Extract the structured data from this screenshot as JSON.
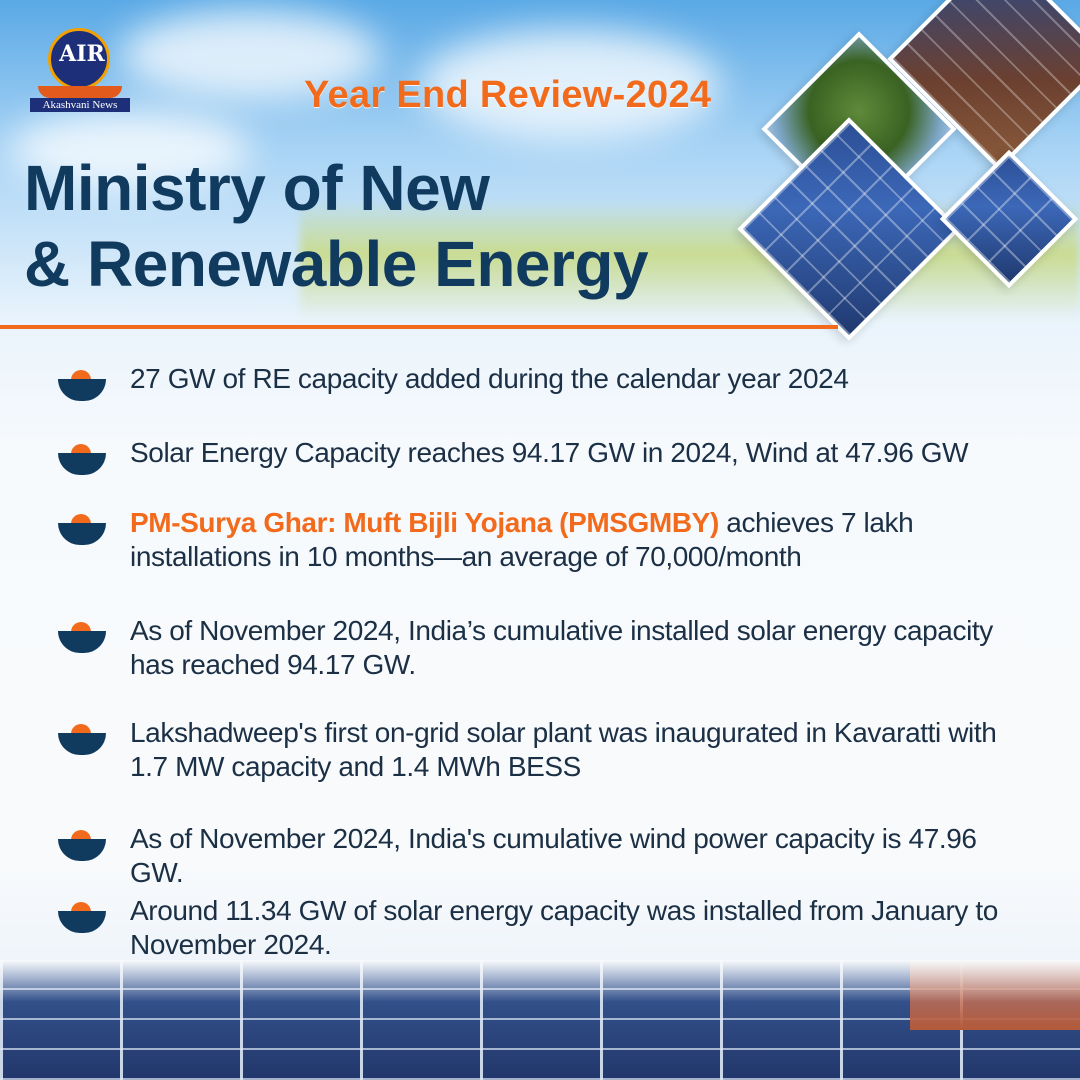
{
  "logo": {
    "mark": "AIR",
    "caption": "Akashvani News",
    "icon": "air-logo-icon"
  },
  "header": {
    "year_title": "Year End Review-2024",
    "title_line1": "Ministry of New",
    "title_line2": "& Renewable Energy"
  },
  "items": [
    {
      "text": "27 GW of RE capacity added during the calendar year 2024"
    },
    {
      "text": "Solar Energy Capacity reaches 94.17 GW in 2024, Wind at 47.96 GW"
    },
    {
      "highlight": "PM-Surya Ghar: Muft Bijli Yojana (PMSGMBY)",
      "text": " achieves 7 lakh installations in 10 months—an average of 70,000/month"
    },
    {
      "text": "As of November 2024, India’s cumulative installed solar energy capacity has reached 94.17 GW."
    },
    {
      "text": "Lakshadweep's first on-grid solar plant was inaugurated in Kavaratti with 1.7 MW capacity and 1.4 MWh BESS"
    },
    {
      "text": "As of November 2024, India's cumulative wind power capacity is 47.96 GW."
    },
    {
      "text": "Around 11.34 GW of solar energy capacity was installed from January to November 2024."
    }
  ],
  "colors": {
    "accent": "#f26b1d",
    "navy": "#103a5e",
    "text": "#1b2f45"
  }
}
